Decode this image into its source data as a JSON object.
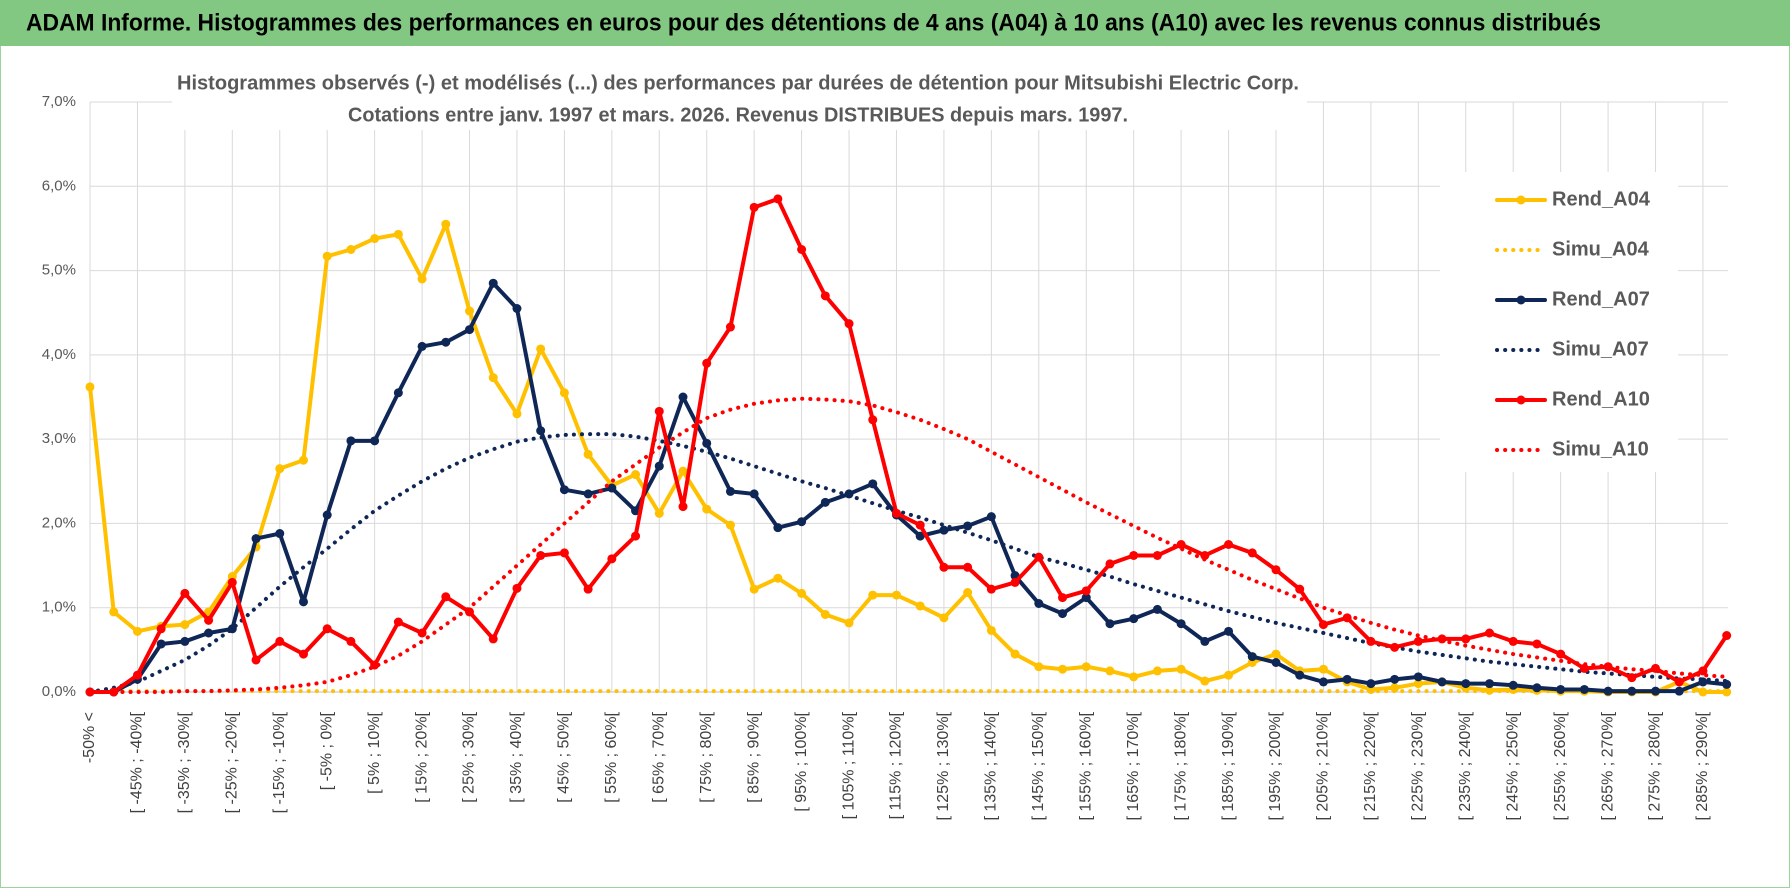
{
  "header": {
    "title": "ADAM Informe. Histogrammes des performances en euros pour des détentions de 4 ans (A04) à 10 ans (A10) avec les revenus connus distribués"
  },
  "chart_data": {
    "type": "line",
    "title": "Histogrammes observés (-) et modélisés (...) des performances par durées de détention pour Mitsubishi Electric Corp.",
    "subtitle": "Cotations entre janv. 1997 et mars. 2026. Revenus DISTRIBUES depuis mars. 1997.",
    "categories": [
      "-50% <",
      null,
      "[ -45% ; -40%[",
      null,
      "[ -35% ; -30%[",
      null,
      "[ -25% ; -20%[",
      null,
      "[ -15% ; -10%[",
      null,
      "[ -5% ; 0%[",
      null,
      "[ 5% ; 10%[",
      null,
      "[ 15% ; 20%[",
      null,
      "[ 25% ; 30%[",
      null,
      "[ 35% ; 40%[",
      null,
      "[ 45% ; 50%[",
      null,
      "[ 55% ; 60%[",
      null,
      "[ 65% ; 70%[",
      null,
      "[ 75% ; 80%[",
      null,
      "[ 85% ; 90%[",
      null,
      "[ 95% ; 100%[",
      null,
      "[ 105% ; 110%[",
      null,
      "[ 115% ; 120%[",
      null,
      "[ 125% ; 130%[",
      null,
      "[ 135% ; 140%[",
      null,
      "[ 145% ; 150%[",
      null,
      "[ 155% ; 160%[",
      null,
      "[ 165% ; 170%[",
      null,
      "[ 175% ; 180%[",
      null,
      "[ 185% ; 190%[",
      null,
      "[ 195% ; 200%[",
      null,
      "[ 205% ; 210%[",
      null,
      "[ 215% ; 220%[",
      null,
      "[ 225% ; 230%[",
      null,
      "[ 235% ; 240%[",
      null,
      "[ 245% ; 250%[",
      null,
      "[ 255% ; 260%[",
      null,
      "[ 265% ; 270%[",
      null,
      "[ 275% ; 280%[",
      null,
      "[ 285% ; 290%[",
      null
    ],
    "series": [
      {
        "name": "Rend_A04",
        "color": "#ffc000",
        "line_style": "solid",
        "values": [
          3.62,
          0.95,
          0.72,
          0.78,
          0.8,
          0.95,
          1.37,
          1.72,
          2.65,
          2.75,
          5.17,
          5.25,
          5.38,
          5.43,
          4.9,
          5.55,
          4.52,
          3.73,
          3.3,
          4.07,
          3.55,
          2.82,
          2.45,
          2.58,
          2.12,
          2.62,
          2.17,
          1.98,
          1.22,
          1.35,
          1.17,
          0.92,
          0.82,
          1.15,
          1.15,
          1.02,
          0.88,
          1.18,
          0.73,
          0.45,
          0.3,
          0.27,
          0.3,
          0.25,
          0.18,
          0.25,
          0.27,
          0.13,
          0.2,
          0.35,
          0.45,
          0.25,
          0.27,
          0.12,
          0.03,
          0.05,
          0.1,
          0.12,
          0.05,
          0.02,
          0.03,
          0.02,
          0.01,
          0.01,
          0,
          0,
          0,
          0.12,
          0,
          0
        ]
      },
      {
        "name": "Simu_A04",
        "color": "#ffc000",
        "line_style": "dotted",
        "values": [
          0,
          0.01,
          0.01,
          0.01,
          0.01,
          0.01,
          0.01,
          0.01,
          0.01,
          0.01,
          0.01,
          0.01,
          0.01,
          0.01,
          0.01,
          0.01,
          0.01,
          0.01,
          0.01,
          0.01,
          0.01,
          0.01,
          0.01,
          0.01,
          0.01,
          0.01,
          0.01,
          0.01,
          0.01,
          0.01,
          0.01,
          0.01,
          0.01,
          0.01,
          0.01,
          0.01,
          0.01,
          0.01,
          0.01,
          0.01,
          0.01,
          0.01,
          0.01,
          0.01,
          0.01,
          0.01,
          0.01,
          0.01,
          0.01,
          0.01,
          0.01,
          0.01,
          0.01,
          0.01,
          0.01,
          0.01,
          0.01,
          0.01,
          0.01,
          0.01,
          0.01,
          0.01,
          0.01,
          0.01,
          0.01,
          0.01,
          0.01,
          0.01,
          0.01,
          0.01
        ]
      },
      {
        "name": "Rend_A07",
        "color": "#0f2757",
        "line_style": "solid",
        "values": [
          0,
          0,
          0.15,
          0.57,
          0.6,
          0.7,
          0.75,
          1.82,
          1.88,
          1.07,
          2.1,
          2.98,
          2.98,
          3.55,
          4.1,
          4.15,
          4.3,
          4.85,
          4.55,
          3.1,
          2.4,
          2.35,
          2.42,
          2.15,
          2.68,
          3.5,
          2.95,
          2.38,
          2.35,
          1.95,
          2.02,
          2.25,
          2.35,
          2.47,
          2.1,
          1.85,
          1.92,
          1.97,
          2.08,
          1.38,
          1.05,
          0.93,
          1.12,
          0.81,
          0.87,
          0.98,
          0.81,
          0.6,
          0.72,
          0.42,
          0.35,
          0.2,
          0.12,
          0.15,
          0.1,
          0.15,
          0.18,
          0.12,
          0.1,
          0.1,
          0.08,
          0.05,
          0.03,
          0.03,
          0.01,
          0.01,
          0.01,
          0.01,
          0.12,
          0.09
        ]
      },
      {
        "name": "Simu_A07",
        "color": "#0f2757",
        "line_style": "dotted",
        "values": [
          0,
          0.05,
          0.12,
          0.25,
          0.38,
          0.55,
          0.75,
          1.0,
          1.25,
          1.48,
          1.7,
          1.93,
          2.15,
          2.33,
          2.5,
          2.65,
          2.78,
          2.88,
          2.97,
          3.02,
          3.05,
          3.06,
          3.06,
          3.03,
          2.98,
          2.92,
          2.85,
          2.77,
          2.68,
          2.59,
          2.5,
          2.42,
          2.33,
          2.24,
          2.15,
          2.07,
          1.98,
          1.89,
          1.8,
          1.7,
          1.6,
          1.53,
          1.45,
          1.37,
          1.28,
          1.2,
          1.12,
          1.04,
          0.96,
          0.89,
          0.82,
          0.76,
          0.7,
          0.64,
          0.58,
          0.53,
          0.48,
          0.44,
          0.4,
          0.36,
          0.33,
          0.3,
          0.27,
          0.24,
          0.22,
          0.2,
          0.18,
          0.16,
          0.15,
          0.13
        ]
      },
      {
        "name": "Rend_A10",
        "color": "#ff0000",
        "line_style": "solid",
        "values": [
          0,
          0,
          0.2,
          0.75,
          1.17,
          0.85,
          1.3,
          0.38,
          0.6,
          0.45,
          0.75,
          0.6,
          0.32,
          0.83,
          0.7,
          1.13,
          0.95,
          0.63,
          1.23,
          1.62,
          1.65,
          1.22,
          1.58,
          1.85,
          3.33,
          2.2,
          3.9,
          4.33,
          5.75,
          5.85,
          5.25,
          4.7,
          4.37,
          3.23,
          2.12,
          1.98,
          1.48,
          1.48,
          1.22,
          1.3,
          1.6,
          1.12,
          1.2,
          1.52,
          1.62,
          1.62,
          1.75,
          1.62,
          1.75,
          1.65,
          1.45,
          1.22,
          0.8,
          0.88,
          0.6,
          0.53,
          0.6,
          0.63,
          0.63,
          0.7,
          0.6,
          0.57,
          0.45,
          0.28,
          0.3,
          0.17,
          0.28,
          0.12,
          0.25,
          0.67
        ]
      },
      {
        "name": "Simu_A10",
        "color": "#ff0000",
        "line_style": "dotted",
        "values": [
          0,
          0,
          0,
          0,
          0.01,
          0.01,
          0.02,
          0.03,
          0.05,
          0.08,
          0.12,
          0.2,
          0.3,
          0.43,
          0.6,
          0.8,
          1.0,
          1.25,
          1.5,
          1.75,
          2.0,
          2.25,
          2.5,
          2.7,
          2.9,
          3.08,
          3.25,
          3.35,
          3.42,
          3.46,
          3.48,
          3.47,
          3.45,
          3.4,
          3.32,
          3.23,
          3.12,
          3.0,
          2.85,
          2.7,
          2.55,
          2.4,
          2.25,
          2.11,
          1.97,
          1.83,
          1.7,
          1.57,
          1.45,
          1.33,
          1.22,
          1.11,
          1.0,
          0.91,
          0.82,
          0.74,
          0.67,
          0.61,
          0.55,
          0.5,
          0.45,
          0.41,
          0.37,
          0.33,
          0.3,
          0.27,
          0.25,
          0.22,
          0.2,
          0.18
        ]
      }
    ],
    "ylim": [
      0,
      7
    ],
    "yticks": [
      {
        "value": 0,
        "label": "0,0%"
      },
      {
        "value": 1,
        "label": "1,0%"
      },
      {
        "value": 2,
        "label": "2,0%"
      },
      {
        "value": 3,
        "label": "3,0%"
      },
      {
        "value": 4,
        "label": "4,0%"
      },
      {
        "value": 5,
        "label": "5,0%"
      },
      {
        "value": 6,
        "label": "6,0%"
      },
      {
        "value": 7,
        "label": "7,0%"
      }
    ],
    "grid": true,
    "legend": "right"
  }
}
